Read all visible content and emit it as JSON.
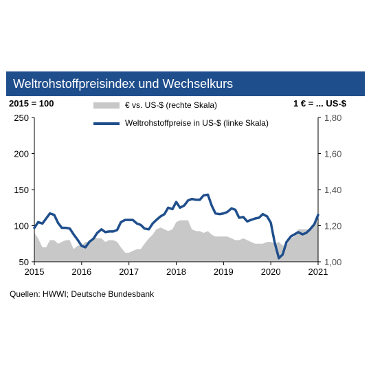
{
  "header": {
    "title": "Weltrohstoffpreisindex und Wechselkurs"
  },
  "left_axis_unit": "2015 = 100",
  "right_axis_unit": "1 € = ... US-$",
  "source": "Quellen: HWWI; Deutsche Bundesbank",
  "colors": {
    "header_bg": "#1f4e8c",
    "line": "#1f4e8c",
    "area": "#c8c8c8"
  },
  "chart_data": {
    "type": "line",
    "x_ticks": [
      "2015",
      "2016",
      "2017",
      "2018",
      "2019",
      "2020",
      "2021"
    ],
    "xlim": [
      2015.0,
      2021.0
    ],
    "y_left": {
      "ylim": [
        50,
        250
      ],
      "ticks": [
        "50",
        "100",
        "150",
        "200",
        "250"
      ]
    },
    "y_right": {
      "ylim": [
        1.0,
        1.8
      ],
      "ticks": [
        "1,00",
        "1,20",
        "1,40",
        "1,60",
        "1,80"
      ]
    },
    "legend_location": "top",
    "series": [
      {
        "name": "€ vs. US-$ (rechte Skala)",
        "style": "area",
        "axis": "right",
        "x": [
          2015.0,
          2015.08,
          2015.17,
          2015.25,
          2015.33,
          2015.42,
          2015.5,
          2015.58,
          2015.67,
          2015.75,
          2015.83,
          2015.92,
          2016.0,
          2016.08,
          2016.17,
          2016.25,
          2016.33,
          2016.42,
          2016.5,
          2016.58,
          2016.67,
          2016.75,
          2016.83,
          2016.92,
          2017.0,
          2017.08,
          2017.17,
          2017.25,
          2017.33,
          2017.42,
          2017.5,
          2017.58,
          2017.67,
          2017.75,
          2017.83,
          2017.92,
          2018.0,
          2018.08,
          2018.17,
          2018.25,
          2018.33,
          2018.42,
          2018.5,
          2018.58,
          2018.67,
          2018.75,
          2018.83,
          2018.92,
          2019.0,
          2019.08,
          2019.17,
          2019.25,
          2019.33,
          2019.42,
          2019.5,
          2019.58,
          2019.67,
          2019.75,
          2019.83,
          2019.92,
          2020.0,
          2020.08,
          2020.17,
          2020.25,
          2020.33,
          2020.42,
          2020.5,
          2020.58,
          2020.67,
          2020.75,
          2020.83,
          2020.92,
          2021.0
        ],
        "values": [
          1.16,
          1.13,
          1.08,
          1.08,
          1.12,
          1.12,
          1.1,
          1.11,
          1.12,
          1.12,
          1.07,
          1.09,
          1.09,
          1.11,
          1.11,
          1.14,
          1.13,
          1.13,
          1.11,
          1.12,
          1.12,
          1.11,
          1.08,
          1.05,
          1.05,
          1.06,
          1.07,
          1.07,
          1.1,
          1.13,
          1.15,
          1.18,
          1.19,
          1.18,
          1.17,
          1.18,
          1.22,
          1.23,
          1.23,
          1.23,
          1.18,
          1.17,
          1.17,
          1.16,
          1.17,
          1.15,
          1.14,
          1.14,
          1.14,
          1.14,
          1.13,
          1.12,
          1.12,
          1.13,
          1.12,
          1.11,
          1.1,
          1.1,
          1.1,
          1.11,
          1.11,
          1.1,
          1.11,
          1.09,
          1.09,
          1.13,
          1.14,
          1.18,
          1.18,
          1.18,
          1.18,
          1.22,
          1.22
        ]
      },
      {
        "name": "Weltrohstoffpreise in US-$ (linke Skala)",
        "style": "line",
        "axis": "left",
        "x": [
          2015.0,
          2015.08,
          2015.17,
          2015.25,
          2015.33,
          2015.42,
          2015.5,
          2015.58,
          2015.67,
          2015.75,
          2015.83,
          2015.92,
          2016.0,
          2016.08,
          2016.17,
          2016.25,
          2016.33,
          2016.42,
          2016.5,
          2016.58,
          2016.67,
          2016.75,
          2016.83,
          2016.92,
          2017.0,
          2017.08,
          2017.17,
          2017.25,
          2017.33,
          2017.42,
          2017.5,
          2017.58,
          2017.67,
          2017.75,
          2017.83,
          2017.92,
          2018.0,
          2018.08,
          2018.17,
          2018.25,
          2018.33,
          2018.42,
          2018.5,
          2018.58,
          2018.67,
          2018.75,
          2018.83,
          2018.92,
          2019.0,
          2019.08,
          2019.17,
          2019.25,
          2019.33,
          2019.42,
          2019.5,
          2019.58,
          2019.67,
          2019.75,
          2019.83,
          2019.92,
          2020.0,
          2020.08,
          2020.17,
          2020.25,
          2020.33,
          2020.42,
          2020.5,
          2020.58,
          2020.67,
          2020.75,
          2020.83,
          2020.92,
          2021.0
        ],
        "values": [
          97,
          105,
          103,
          110,
          117,
          115,
          104,
          97,
          97,
          96,
          88,
          80,
          72,
          70,
          78,
          82,
          90,
          95,
          91,
          92,
          92,
          94,
          105,
          108,
          108,
          108,
          103,
          101,
          96,
          95,
          103,
          108,
          113,
          116,
          125,
          123,
          133,
          125,
          128,
          135,
          137,
          136,
          136,
          142,
          143,
          128,
          117,
          116,
          117,
          119,
          124,
          122,
          111,
          112,
          106,
          108,
          110,
          111,
          116,
          113,
          104,
          77,
          55,
          60,
          77,
          85,
          88,
          91,
          88,
          90,
          95,
          102,
          115
        ]
      }
    ]
  }
}
